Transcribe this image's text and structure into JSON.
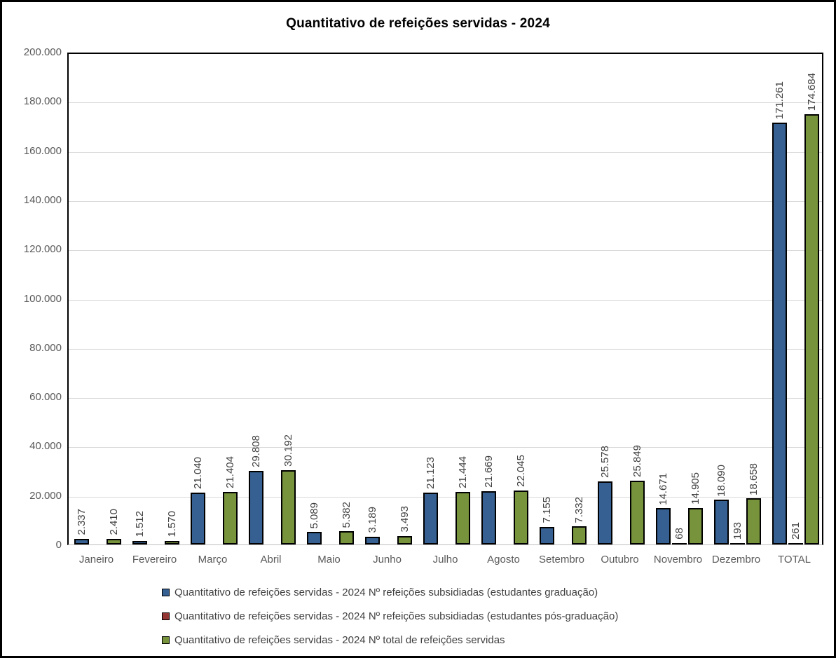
{
  "title": "Quantitativo de refeições servidas - 2024",
  "chart_data": {
    "type": "bar",
    "title": "Quantitativo de refeições servidas - 2024",
    "categories": [
      "Janeiro",
      "Fevereiro",
      "Março",
      "Abril",
      "Maio",
      "Junho",
      "Julho",
      "Agosto",
      "Setembro",
      "Outubro",
      "Novembro",
      "Dezembro",
      "TOTAL"
    ],
    "series": [
      {
        "name": "Quantitativo de refeições servidas - 2024 Nº refeições subsidiadas (estudantes graduação)",
        "color": "#366092",
        "values": [
          2337,
          1512,
          21040,
          29808,
          5089,
          3189,
          21123,
          21669,
          7155,
          25578,
          14671,
          18090,
          171261
        ],
        "labels": [
          "2.337",
          "1.512",
          "21.040",
          "29.808",
          "5.089",
          "3.189",
          "21.123",
          "21.669",
          "7.155",
          "25.578",
          "14.671",
          "18.090",
          "171.261"
        ]
      },
      {
        "name": "Quantitativo de refeições servidas - 2024 Nº refeições subsidiadas (estudantes pós-graduação)",
        "color": "#943634",
        "values": [
          0,
          0,
          0,
          0,
          0,
          0,
          0,
          0,
          0,
          0,
          68,
          193,
          261
        ],
        "labels": [
          "",
          "",
          "",
          "",
          "",
          "",
          "",
          "",
          "",
          "",
          "68",
          "193",
          "261"
        ]
      },
      {
        "name": "Quantitativo de refeições servidas - 2024 Nº total de refeições servidas",
        "color": "#77933C",
        "values": [
          2410,
          1570,
          21404,
          30192,
          5382,
          3493,
          21444,
          22045,
          7332,
          25849,
          14905,
          18658,
          174684
        ],
        "labels": [
          "2.410",
          "1.570",
          "21.404",
          "30.192",
          "5.382",
          "3.493",
          "21.444",
          "22.045",
          "7.332",
          "25.849",
          "14.905",
          "18.658",
          "174.684"
        ]
      }
    ],
    "ylim": [
      0,
      200000
    ],
    "ytick_interval": 20000,
    "ytick_labels": [
      "200.000",
      "180.000",
      "160.000",
      "140.000",
      "120.000",
      "100.000",
      "80.000",
      "60.000",
      "40.000",
      "20.000",
      "0"
    ],
    "grid": true,
    "legend_position": "bottom-left",
    "axis_label_color": "#595959",
    "data_label_color": "#404040",
    "gridline_color": "#D9D9D9",
    "bar_outline_color": "#000000"
  }
}
